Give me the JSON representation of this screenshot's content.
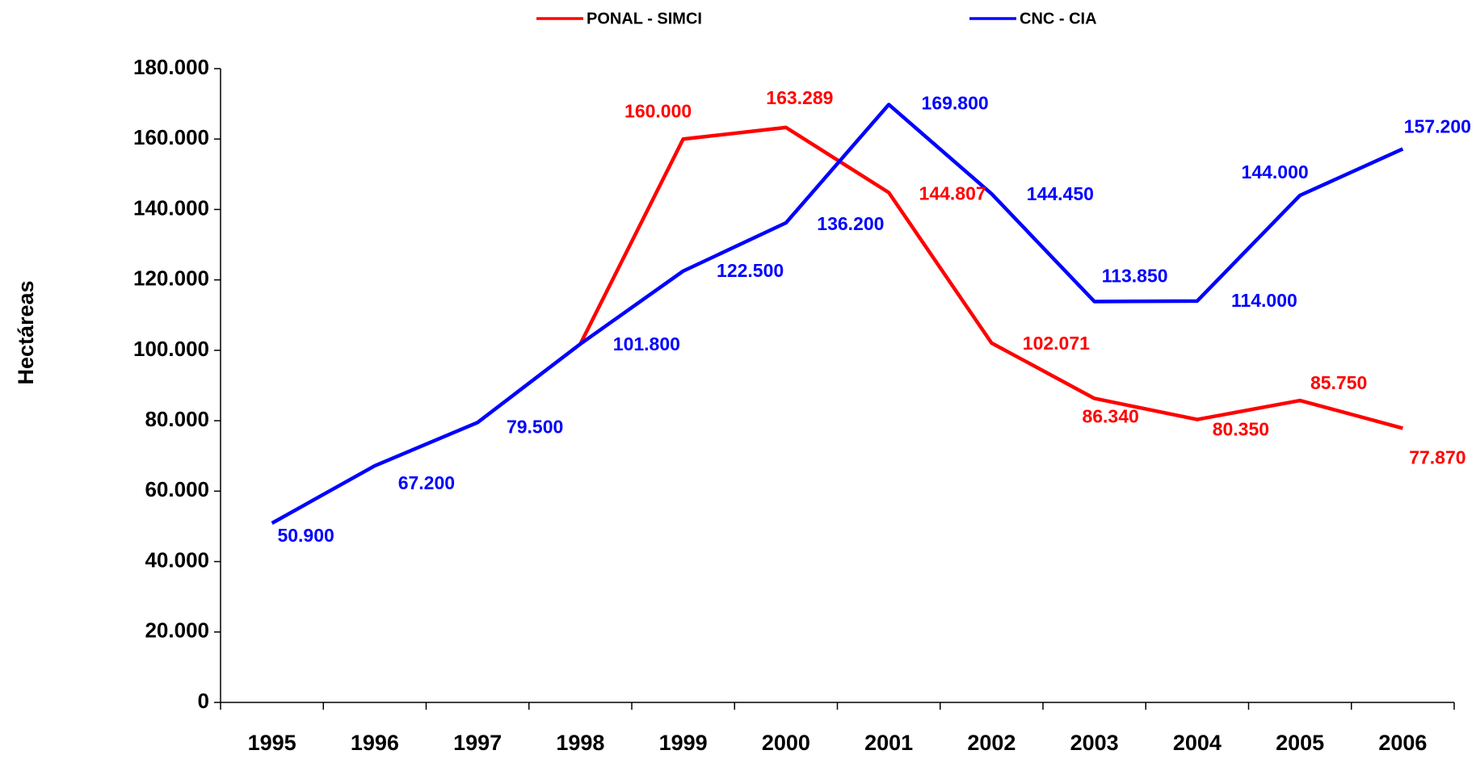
{
  "chart_data": {
    "type": "line",
    "y_label": "Hectáreas",
    "categories": [
      "1995",
      "1996",
      "1997",
      "1998",
      "1999",
      "2000",
      "2001",
      "2002",
      "2003",
      "2004",
      "2005",
      "2006"
    ],
    "series": [
      {
        "name": "PONAL - SIMCI",
        "color": "#ff0000",
        "values": [
          null,
          null,
          null,
          101800,
          160000,
          163289,
          144807,
          102071,
          86340,
          80350,
          85750,
          77870
        ],
        "value_labels": [
          null,
          null,
          null,
          null,
          "160.000",
          "163.289",
          "144.807",
          "102.071",
          "86.340",
          "80.350",
          "85.750",
          "77.870"
        ]
      },
      {
        "name": "CNC - CIA",
        "color": "#0000ff",
        "values": [
          50900,
          67200,
          79500,
          101800,
          122500,
          136200,
          169800,
          144450,
          113850,
          114000,
          144000,
          157200
        ],
        "value_labels": [
          "50.900",
          "67.200",
          "79.500",
          "101.800",
          "122.500",
          "136.200",
          "169.800",
          "144.450",
          "113.850",
          "114.000",
          "144.000",
          "157.200"
        ]
      }
    ],
    "ylim": [
      0,
      180000
    ],
    "yticks": [
      0,
      {
        "value": 20000,
        "label": "20.000"
      },
      {
        "value": 40000,
        "label": "40.000"
      },
      {
        "value": 60000,
        "label": "60.000"
      },
      {
        "value": 80000,
        "label": "80.000"
      },
      {
        "value": 100000,
        "label": "100.000"
      },
      {
        "value": 120000,
        "label": "120.000"
      },
      {
        "value": 140000,
        "label": "140.000"
      },
      {
        "value": 160000,
        "label": "160.000"
      },
      {
        "value": 180000,
        "label": "180.000"
      }
    ],
    "grid": false,
    "legend": "top"
  }
}
